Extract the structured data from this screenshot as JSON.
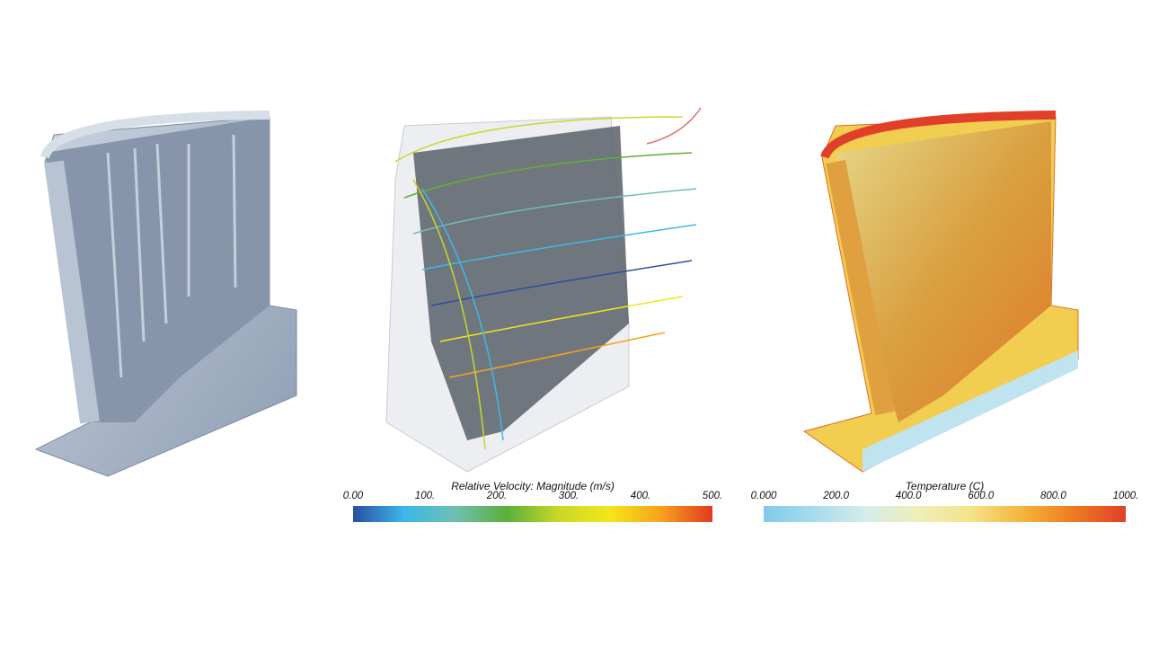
{
  "colorbars": [
    {
      "title": "Relative Velocity: Magnitude (m/s)",
      "ticks": [
        "0.00",
        "100.",
        "200.",
        "300.",
        "400.",
        "500."
      ],
      "range": [
        0,
        500
      ],
      "colors": [
        "#2a4ea0",
        "#3db8ea",
        "#6fbfb0",
        "#5bb03a",
        "#c8d828",
        "#f5e61a",
        "#f7a21c",
        "#e03a22"
      ]
    },
    {
      "title": "Temperature (C)",
      "ticks": [
        "0.000",
        "200.0",
        "400.0",
        "600.0",
        "800.0",
        "1000."
      ],
      "range": [
        0,
        1000
      ],
      "colors": [
        "#7fcbe8",
        "#a9dcee",
        "#d8ecea",
        "#eeeeb8",
        "#f4e48a",
        "#f6b43a",
        "#ee7a22",
        "#e0402a"
      ]
    }
  ],
  "panels": [
    {
      "name": "geometry",
      "color": "#a9b8cc"
    },
    {
      "name": "velocity-streamlines",
      "color": "#5a6068"
    },
    {
      "name": "temperature",
      "color": "#e8a030"
    }
  ]
}
